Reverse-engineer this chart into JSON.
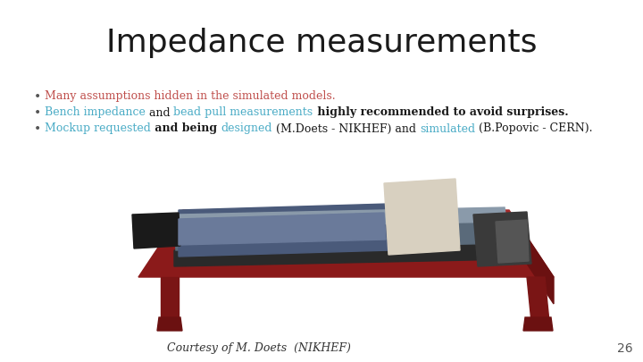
{
  "title": "Impedance measurements",
  "title_fontsize": 26,
  "title_color": "#1a1a1a",
  "bullet_fontsize": 9,
  "bullet_color_red": "#c0504d",
  "bullet_color_blue": "#4bacc6",
  "bullet_color_black": "#1a1a1a",
  "bullet_marker": "•",
  "line1_segments": [
    {
      "text": "Many assumptions hidden in the simulated models.",
      "color": "#c0504d",
      "bold": false
    }
  ],
  "line2_segments": [
    {
      "text": "Bench impedance",
      "color": "#4bacc6",
      "bold": false
    },
    {
      "text": " and ",
      "color": "#1a1a1a",
      "bold": false
    },
    {
      "text": "bead pull measurements",
      "color": "#4bacc6",
      "bold": false
    },
    {
      "text": " highly recommended to avoid surprises.",
      "color": "#1a1a1a",
      "bold": true
    }
  ],
  "line3_segments": [
    {
      "text": "Mockup requested",
      "color": "#4bacc6",
      "bold": false
    },
    {
      "text": " and being ",
      "color": "#1a1a1a",
      "bold": true
    },
    {
      "text": "designed",
      "color": "#4bacc6",
      "bold": false
    },
    {
      "text": " (M.Doets - NIKHEF) and ",
      "color": "#1a1a1a",
      "bold": false
    },
    {
      "text": "simulated",
      "color": "#4bacc6",
      "bold": false
    },
    {
      "text": " (B.Popovic - CERN).",
      "color": "#1a1a1a",
      "bold": false
    }
  ],
  "footer_text": "Courtesy of M. Doets  (NIKHEF)",
  "page_num": "26",
  "background_color": "#ffffff"
}
